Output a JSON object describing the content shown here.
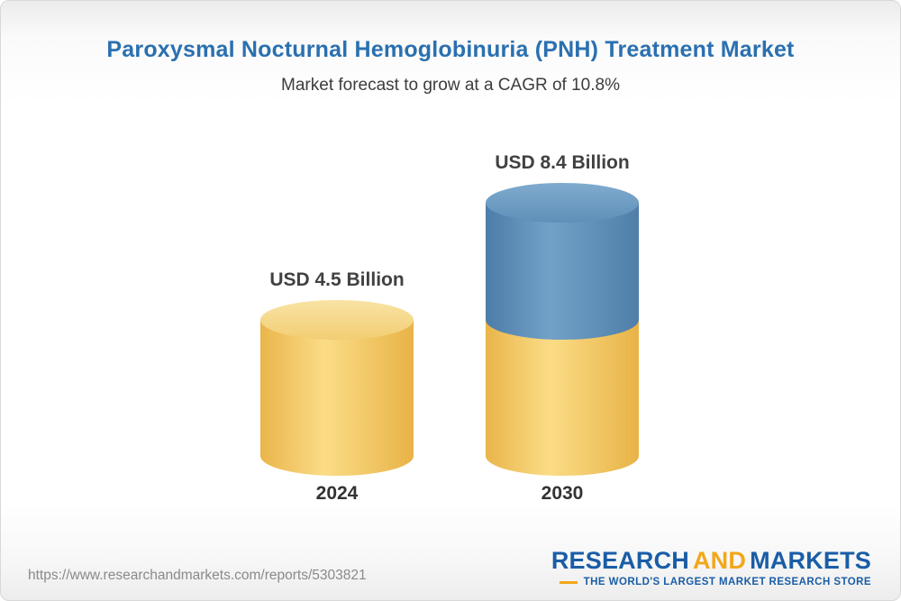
{
  "header": {
    "title": "Paroxysmal Nocturnal Hemoglobinuria (PNH) Treatment Market",
    "subtitle": "Market forecast to grow at a CAGR of 10.8%"
  },
  "chart_data": {
    "type": "bar",
    "subtype": "3d-cylinder",
    "title": "Paroxysmal Nocturnal Hemoglobinuria (PNH) Treatment Market",
    "subtitle": "Market forecast to grow at a CAGR of 10.8%",
    "unit": "USD Billion",
    "cagr_percent": 10.8,
    "categories": [
      "2024",
      "2030"
    ],
    "values": [
      4.5,
      8.4
    ],
    "value_labels": [
      "USD 4.5 Billion",
      "USD 8.4 Billion"
    ],
    "ylim": [
      0,
      9.2
    ],
    "grid": false,
    "legend_position": "none",
    "bars": [
      {
        "category": "2024",
        "value": 4.5,
        "label": "USD 4.5 Billion",
        "segments": [
          {
            "name": "2024-total",
            "value": 4.5,
            "color": "yellow"
          }
        ]
      },
      {
        "category": "2030",
        "value": 8.4,
        "label": "USD 8.4 Billion",
        "segments": [
          {
            "name": "2030-base",
            "value": 4.5,
            "color": "yellow"
          },
          {
            "name": "2030-growth",
            "value": 3.9,
            "color": "blue"
          }
        ]
      }
    ],
    "palette": {
      "yellow": {
        "edge": "#E9B54B",
        "mid": "#FBDC86",
        "edge2": "#E8B347",
        "cap_light": "#F9E3A4",
        "cap_dark": "#F2CE74"
      },
      "blue": {
        "edge": "#4C7DA9",
        "mid": "#72A1C7",
        "edge2": "#4F7FA9",
        "cap_light": "#7FABCE",
        "cap_dark": "#5F8FB8"
      }
    },
    "colors": {
      "title": "#2A70B0",
      "subtitle": "#3D3D3D",
      "value_label": "#414141",
      "category_label": "#333333"
    }
  },
  "footer": {
    "url": "https://www.researchandmarkets.com/reports/5303821",
    "logo": {
      "research": "RESEARCH",
      "and": "AND",
      "markets": "MARKETS",
      "tagline": "THE WORLD'S LARGEST MARKET RESEARCH STORE"
    }
  }
}
